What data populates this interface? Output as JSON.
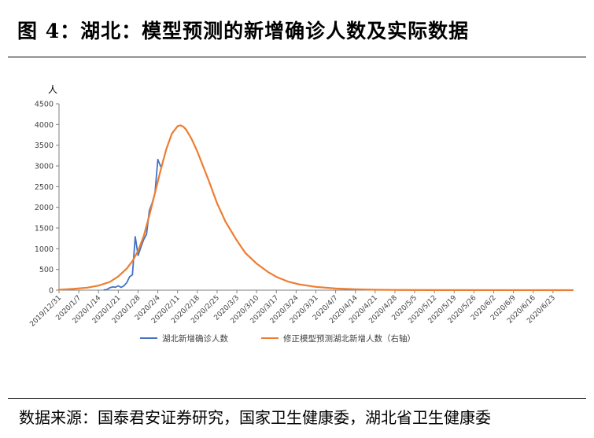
{
  "header": {
    "title": "图 4：湖北：模型预测的新增确诊人数及实际数据"
  },
  "footer": {
    "source": "数据来源：国泰君安证券研究，国家卫生健康委，湖北省卫生健康委"
  },
  "chart_data": {
    "type": "line",
    "title": "",
    "ylabel": "人",
    "ylim": [
      0,
      4500
    ],
    "yticks": [
      0,
      500,
      1000,
      1500,
      2000,
      2500,
      3000,
      3500,
      4000,
      4500
    ],
    "xlim": [
      "2019-12-31",
      "2020-06-30"
    ],
    "xtick_labels": [
      "2019/12/31",
      "2020/1/7",
      "2020/1/14",
      "2020/1/21",
      "2020/1/28",
      "2020/2/4",
      "2020/2/11",
      "2020/2/18",
      "2020/2/25",
      "2020/3/3",
      "2020/3/10",
      "2020/3/17",
      "2020/3/24",
      "2020/3/31",
      "2020/4/7",
      "2020/4/14",
      "2020/4/21",
      "2020/4/28",
      "2020/5/5",
      "2020/5/12",
      "2020/5/19",
      "2020/5/26",
      "2020/6/2",
      "2020/6/9",
      "2020/6/16",
      "2020/6/23"
    ],
    "grid": false,
    "legend_position": "bottom",
    "series": [
      {
        "name": "湖北新增确诊人数",
        "color": "#4472C4",
        "x": [
          "2020-01-16",
          "2020-01-17",
          "2020-01-18",
          "2020-01-19",
          "2020-01-20",
          "2020-01-21",
          "2020-01-22",
          "2020-01-23",
          "2020-01-24",
          "2020-01-25",
          "2020-01-26",
          "2020-01-27",
          "2020-01-28",
          "2020-01-29",
          "2020-01-30",
          "2020-01-31",
          "2020-02-01",
          "2020-02-02",
          "2020-02-03",
          "2020-02-04",
          "2020-02-05"
        ],
        "y": [
          4,
          17,
          59,
          77,
          72,
          105,
          69,
          105,
          180,
          323,
          371,
          1291,
          840,
          1032,
          1220,
          1347,
          1921,
          2103,
          2345,
          3156,
          2987
        ]
      },
      {
        "name": "修正模型预测湖北新增人数（右轴）",
        "color": "#ED7D31",
        "x": [
          "2019-12-31",
          "2020-01-05",
          "2020-01-10",
          "2020-01-14",
          "2020-01-18",
          "2020-01-21",
          "2020-01-24",
          "2020-01-26",
          "2020-01-28",
          "2020-01-30",
          "2020-02-01",
          "2020-02-03",
          "2020-02-05",
          "2020-02-07",
          "2020-02-09",
          "2020-02-11",
          "2020-02-12",
          "2020-02-13",
          "2020-02-14",
          "2020-02-16",
          "2020-02-18",
          "2020-02-20",
          "2020-02-22",
          "2020-02-25",
          "2020-02-28",
          "2020-03-03",
          "2020-03-06",
          "2020-03-10",
          "2020-03-14",
          "2020-03-17",
          "2020-03-21",
          "2020-03-25",
          "2020-03-31",
          "2020-04-07",
          "2020-04-14",
          "2020-04-21",
          "2020-04-28",
          "2020-05-12",
          "2020-06-30"
        ],
        "y": [
          10,
          30,
          60,
          110,
          200,
          330,
          520,
          700,
          950,
          1300,
          1800,
          2350,
          2900,
          3400,
          3780,
          3960,
          3980,
          3950,
          3880,
          3650,
          3350,
          3000,
          2650,
          2100,
          1650,
          1200,
          900,
          640,
          440,
          320,
          210,
          140,
          80,
          40,
          20,
          10,
          5,
          2,
          0
        ]
      }
    ]
  }
}
